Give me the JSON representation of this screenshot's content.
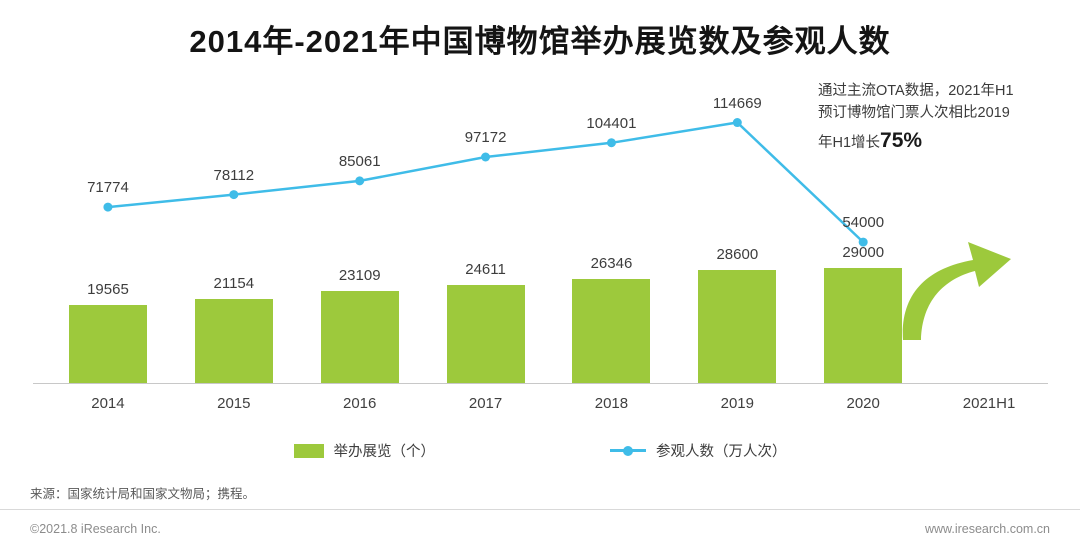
{
  "title": "2014年-2021年中国博物馆举办展览数及参观人数",
  "annotation": {
    "line1": "通过主流OTA数据，2021年H1",
    "line2": "预订博物馆门票人次相比2019",
    "line3_prefix": "年H1增长",
    "line3_highlight": "75%"
  },
  "chart_data": {
    "type": "bar",
    "subtype": "bar+line combo, dual scale",
    "categories": [
      "2014",
      "2015",
      "2016",
      "2017",
      "2018",
      "2019",
      "2020",
      "2021H1"
    ],
    "series": [
      {
        "name": "举办展览（个）",
        "type": "bar",
        "color": "#9DC93C",
        "values": [
          19565,
          21154,
          23109,
          24611,
          26346,
          28600,
          29000,
          null
        ]
      },
      {
        "name": "参观人数（万人次）",
        "type": "line",
        "color": "#3FBCE8",
        "values": [
          71774,
          78112,
          85061,
          97172,
          104401,
          114669,
          54000,
          null
        ]
      }
    ],
    "line_ylim": [
      50000,
      120000
    ],
    "grid": false,
    "legend_position": "bottom",
    "annotations": [
      "growth arrow at 2021H1 slot pointing up-right"
    ]
  },
  "legend": {
    "bar_label": "举办展览（个）",
    "line_label": "参观人数（万人次）"
  },
  "source": "来源：国家统计局和国家文物局；携程。",
  "footer": {
    "left": "©2021.8 iResearch Inc.",
    "right": "www.iresearch.com.cn"
  },
  "colors": {
    "bar": "#9DC93C",
    "line": "#3FBCE8",
    "arrow": "#9DC93C",
    "axis": "#c8c8c8"
  }
}
